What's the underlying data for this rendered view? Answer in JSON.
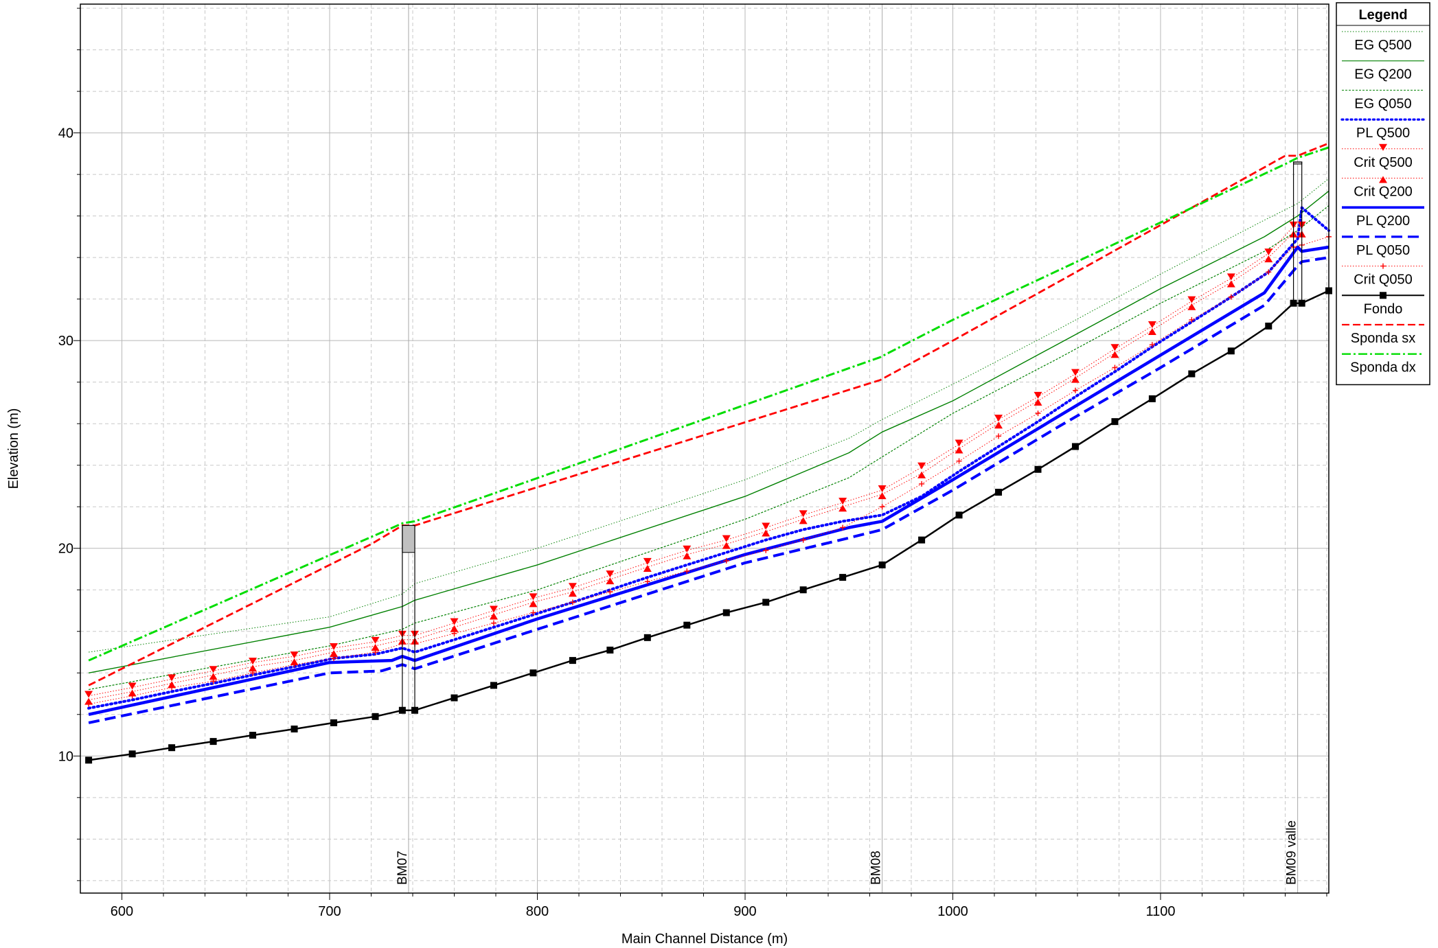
{
  "chart_data": {
    "type": "line",
    "title": "",
    "xlabel": "Main Channel Distance (m)",
    "ylabel": "Elevation (m)",
    "xlim": [
      580,
      1181
    ],
    "ylim": [
      3.4,
      46.2
    ],
    "x_ticks": [
      600,
      700,
      800,
      900,
      1000,
      1100
    ],
    "y_ticks": [
      10,
      20,
      30,
      40
    ],
    "grid": true,
    "legend_placement": "right",
    "legend_title": "Legend",
    "colors": {
      "eg": "#008000",
      "pl": "#0000ff",
      "crit": "#ff0000",
      "fondo": "#000000",
      "sponda_sx": "#ff0000",
      "sponda_dx": "#00dd00",
      "culvert_fill": "#c0c0c0"
    },
    "series": [
      {
        "name": "EG  Q500",
        "style": "eg500",
        "x": [
          584,
          700,
          735,
          741,
          800,
          900,
          950,
          966,
          1000,
          1050,
          1100,
          1150,
          1166,
          1181
        ],
        "y": [
          15.0,
          16.7,
          17.8,
          18.3,
          20.0,
          23.3,
          25.3,
          26.2,
          27.9,
          30.5,
          33.2,
          35.8,
          36.6,
          37.8
        ]
      },
      {
        "name": "EG  Q200",
        "style": "eg200",
        "x": [
          584,
          700,
          735,
          741,
          800,
          900,
          950,
          966,
          1000,
          1050,
          1100,
          1150,
          1166,
          1181
        ],
        "y": [
          14.0,
          16.2,
          17.2,
          17.5,
          19.2,
          22.5,
          24.6,
          25.6,
          27.1,
          29.8,
          32.5,
          35.0,
          36.0,
          37.2
        ]
      },
      {
        "name": "EG  Q050",
        "style": "eg050",
        "x": [
          584,
          700,
          735,
          741,
          800,
          900,
          950,
          966,
          1000,
          1050,
          1100,
          1150,
          1166,
          1181
        ],
        "y": [
          13.2,
          15.3,
          16.1,
          16.4,
          18.0,
          21.4,
          23.4,
          24.4,
          26.5,
          29.1,
          31.8,
          34.3,
          35.3,
          36.5
        ]
      },
      {
        "name": "PL  Q500",
        "style": "pl500",
        "x": [
          584,
          605,
          624,
          644,
          663,
          683,
          702,
          722,
          735,
          741,
          760,
          779,
          798,
          817,
          835,
          853,
          872,
          891,
          910,
          928,
          947,
          966,
          985,
          1003,
          1022,
          1041,
          1059,
          1078,
          1096,
          1115,
          1134,
          1152,
          1166,
          1168,
          1181
        ],
        "y": [
          12.3,
          12.7,
          13.1,
          13.5,
          13.9,
          14.3,
          14.7,
          14.9,
          15.2,
          15.0,
          15.6,
          16.2,
          16.8,
          17.4,
          18.0,
          18.6,
          19.2,
          19.8,
          20.4,
          20.9,
          21.3,
          21.6,
          22.5,
          23.7,
          24.9,
          26.1,
          27.3,
          28.5,
          29.7,
          30.9,
          32.1,
          33.3,
          34.9,
          36.4,
          35.3
        ]
      },
      {
        "name": "Crit  Q500",
        "style": "crit500",
        "x": [
          584,
          605,
          624,
          644,
          663,
          683,
          702,
          722,
          735,
          741,
          760,
          779,
          798,
          817,
          835,
          853,
          872,
          891,
          910,
          928,
          947,
          966,
          985,
          1003,
          1022,
          1041,
          1059,
          1078,
          1096,
          1115,
          1134,
          1152,
          1164,
          1168
        ],
        "y": [
          12.9,
          13.3,
          13.7,
          14.1,
          14.5,
          14.8,
          15.2,
          15.5,
          15.8,
          15.8,
          16.4,
          17.0,
          17.6,
          18.1,
          18.7,
          19.3,
          19.9,
          20.4,
          21.0,
          21.6,
          22.2,
          22.8,
          23.9,
          25.0,
          26.2,
          27.3,
          28.4,
          29.6,
          30.7,
          31.9,
          33.0,
          34.2,
          35.5,
          35.5
        ]
      },
      {
        "name": "Crit  Q200",
        "style": "crit200",
        "x": [
          584,
          605,
          624,
          644,
          663,
          683,
          702,
          722,
          735,
          741,
          760,
          779,
          798,
          817,
          835,
          853,
          872,
          891,
          910,
          928,
          947,
          966,
          985,
          1003,
          1022,
          1041,
          1059,
          1078,
          1096,
          1115,
          1134,
          1152,
          1164,
          1168
        ],
        "y": [
          12.7,
          13.1,
          13.5,
          13.9,
          14.3,
          14.6,
          15.0,
          15.3,
          15.6,
          15.6,
          16.2,
          16.8,
          17.4,
          17.9,
          18.5,
          19.1,
          19.7,
          20.2,
          20.8,
          21.4,
          22.0,
          22.6,
          23.6,
          24.8,
          26.0,
          27.1,
          28.2,
          29.4,
          30.5,
          31.7,
          32.8,
          34.0,
          35.2,
          35.2
        ]
      },
      {
        "name": "PL  Q200",
        "style": "pl200",
        "x": [
          584,
          700,
          730,
          735,
          741,
          800,
          900,
          950,
          966,
          1000,
          1050,
          1100,
          1150,
          1166,
          1168,
          1181
        ],
        "y": [
          12.0,
          14.5,
          14.6,
          14.8,
          14.6,
          16.6,
          19.7,
          21.0,
          21.3,
          23.3,
          26.3,
          29.3,
          32.3,
          34.5,
          34.3,
          34.5
        ]
      },
      {
        "name": "PL  Q050",
        "style": "pl050",
        "x": [
          584,
          700,
          725,
          735,
          741,
          800,
          900,
          950,
          966,
          1000,
          1050,
          1100,
          1150,
          1166,
          1168,
          1181
        ],
        "y": [
          11.6,
          14.0,
          14.1,
          14.4,
          14.2,
          16.1,
          19.3,
          20.5,
          20.9,
          22.8,
          25.8,
          28.7,
          31.7,
          33.6,
          33.8,
          34.0
        ]
      },
      {
        "name": "Crit  Q050",
        "style": "crit050",
        "x": [
          584,
          605,
          624,
          644,
          663,
          683,
          702,
          722,
          735,
          741,
          760,
          779,
          798,
          817,
          835,
          853,
          872,
          891,
          910,
          928,
          947,
          966,
          985,
          1003,
          1022,
          1041,
          1059,
          1078,
          1096,
          1115,
          1134,
          1152,
          1164,
          1168,
          1181
        ],
        "y": [
          12.5,
          12.9,
          13.3,
          13.6,
          14.0,
          14.4,
          14.7,
          15.0,
          15.4,
          15.4,
          15.9,
          16.4,
          16.9,
          17.4,
          17.9,
          18.4,
          18.9,
          19.4,
          19.9,
          20.4,
          21.0,
          22.0,
          23.1,
          24.2,
          25.4,
          26.5,
          27.6,
          28.7,
          29.8,
          31.0,
          32.1,
          33.3,
          34.5,
          34.6,
          35.0
        ]
      },
      {
        "name": "Fondo",
        "style": "fondo",
        "x": [
          584,
          605,
          624,
          644,
          663,
          683,
          702,
          722,
          735,
          741,
          760,
          779,
          798,
          817,
          835,
          853,
          872,
          891,
          910,
          928,
          947,
          966,
          985,
          1003,
          1022,
          1041,
          1059,
          1078,
          1096,
          1115,
          1134,
          1152,
          1164,
          1168,
          1181
        ],
        "y": [
          9.8,
          10.1,
          10.4,
          10.7,
          11.0,
          11.3,
          11.6,
          11.9,
          12.2,
          12.2,
          12.8,
          13.4,
          14.0,
          14.6,
          15.1,
          15.7,
          16.3,
          16.9,
          17.4,
          18.0,
          18.6,
          19.2,
          20.4,
          21.6,
          22.7,
          23.8,
          24.9,
          26.1,
          27.2,
          28.4,
          29.5,
          30.7,
          31.8,
          31.8,
          32.4
        ]
      },
      {
        "name": "Sponda sx",
        "style": "sx",
        "x": [
          584,
          720,
          735,
          741,
          965,
          1000,
          1160,
          1166,
          1181
        ],
        "y": [
          13.4,
          20.2,
          21.1,
          21.1,
          28.1,
          30.0,
          38.9,
          38.9,
          39.5
        ]
      },
      {
        "name": "Sponda dx",
        "style": "dx",
        "x": [
          584,
          735,
          741,
          965,
          1000,
          1160,
          1166,
          1181
        ],
        "y": [
          14.6,
          21.2,
          21.3,
          29.2,
          31.0,
          38.5,
          38.8,
          39.3
        ]
      }
    ],
    "stations": [
      {
        "label": "BM07",
        "x": 738
      },
      {
        "label": "BM08",
        "x": 966
      },
      {
        "label": "BM09 valle",
        "x": 1166
      }
    ],
    "culverts": [
      {
        "x0": 735,
        "x1": 741,
        "low": 12.2,
        "high": 21.1,
        "fill_from": 19.8
      },
      {
        "x0": 1164,
        "x1": 1168,
        "low": 31.8,
        "high": 38.6,
        "fill_from": 38.5
      }
    ]
  }
}
